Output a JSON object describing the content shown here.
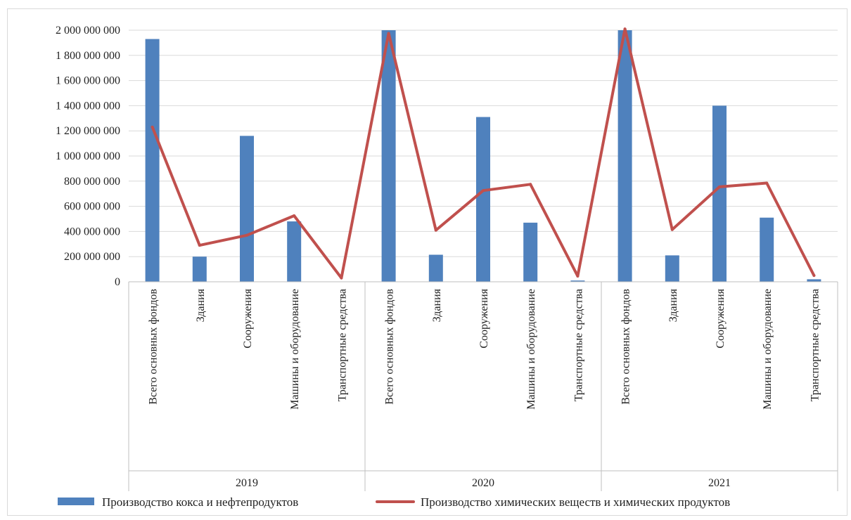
{
  "chart_data": {
    "type": "bar",
    "title": "",
    "xlabel": "",
    "ylabel": "",
    "ylim": [
      0,
      2000000000
    ],
    "yticks": [
      0,
      200000000,
      400000000,
      600000000,
      800000000,
      1000000000,
      1200000000,
      1400000000,
      1600000000,
      1800000000,
      2000000000
    ],
    "ytick_labels": [
      "0",
      "200 000 000",
      "400 000 000",
      "600 000 000",
      "800 000 000",
      "1 000 000 000",
      "1 200 000 000",
      "1 400 000 000",
      "1 600 000 000",
      "1 800 000 000",
      "2 000 000 000"
    ],
    "grid": true,
    "legend_position": "bottom",
    "groups": [
      "2019",
      "2020",
      "2021"
    ],
    "categories": [
      "Всего основных фондов",
      "Здания",
      "Сооружения",
      "Машины  и оборудование",
      "Транспортные средства",
      "Всего основных фондов",
      "Здания",
      "Сооружения",
      "Машины  и оборудование",
      "Транспортные средства",
      "Всего основных фондов",
      "Здания",
      "Сооружения",
      "Машины  и оборудование",
      "Транспортные средства"
    ],
    "series": [
      {
        "name": "Производство кокса и нефтепродуктов",
        "kind": "bar",
        "color": "#4f81bd",
        "values": [
          1930000000,
          200000000,
          1160000000,
          480000000,
          0,
          2000000000,
          215000000,
          1310000000,
          470000000,
          10000000,
          2000000000,
          210000000,
          1400000000,
          510000000,
          20000000
        ]
      },
      {
        "name": "Производство химических веществ и химических продуктов",
        "kind": "line",
        "color": "#c0504d",
        "values": [
          1230000000,
          290000000,
          370000000,
          525000000,
          30000000,
          1975000000,
          410000000,
          725000000,
          775000000,
          45000000,
          2010000000,
          415000000,
          755000000,
          785000000,
          50000000
        ]
      }
    ]
  }
}
